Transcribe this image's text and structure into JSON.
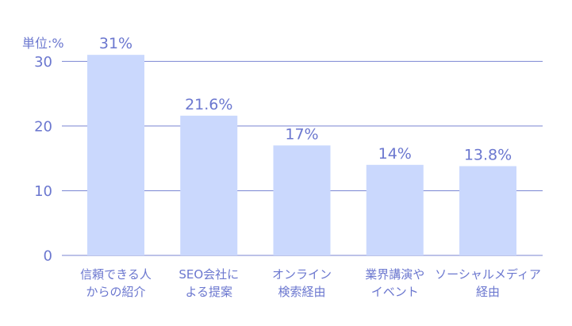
{
  "chart_data": {
    "type": "bar",
    "unit_label": "単位:%",
    "categories": [
      [
        "信頼できる人",
        "からの紹介"
      ],
      [
        "SEO会社に",
        "よる提案"
      ],
      [
        "オンライン",
        "検索経由"
      ],
      [
        "業界講演や",
        "イベント"
      ],
      [
        "ソーシャルメディア",
        "経由"
      ]
    ],
    "values": [
      31,
      21.6,
      17,
      14,
      13.8
    ],
    "value_labels": [
      "31%",
      "21.6%",
      "17%",
      "14%",
      "13.8%"
    ],
    "y_ticks": [
      0,
      10,
      20,
      30
    ],
    "ylim": [
      0,
      32
    ],
    "grid": true,
    "colors": {
      "bar": "#cad8fd",
      "grid": "#7a85d2",
      "text": "#6b77cf"
    }
  }
}
